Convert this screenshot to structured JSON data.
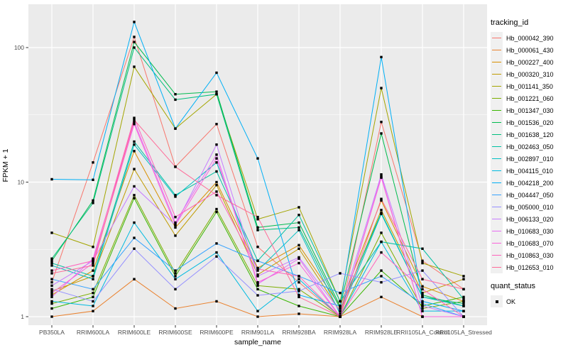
{
  "figure": {
    "background": "#FFFFFF",
    "panel_background": "#EBEBEB",
    "gridline_color": "#FFFFFF",
    "tick_color": "#333333",
    "tick_label_color": "#4D4D4D"
  },
  "chart_data": {
    "type": "line",
    "xlabel": "sample_name",
    "ylabel": "FPKM + 1",
    "y_scale": "log10",
    "y_ticks": [
      1,
      10,
      100
    ],
    "y_minor_ticks": [
      3.1623,
      31.623
    ],
    "grid": true,
    "legend_position": "right",
    "legend_title": "tracking_id",
    "point_marker": {
      "shape": "square",
      "color": "#000000",
      "size": 3.4
    },
    "categories": [
      "PB350LA",
      "RRIM600LA",
      "RRIM600LE",
      "RRIM600SE",
      "RRIM600PE",
      "RRIM901LA",
      "RRIM928BA",
      "RRIM928LA",
      "RRIM928LE",
      "RRII105LA_Control",
      "RRII105LA_Stressed"
    ],
    "series": [
      {
        "name": "Hb_000042_390",
        "color": "#F8766D",
        "values": [
          1.8,
          14,
          120,
          13,
          27,
          3.3,
          1.8,
          1.0,
          28,
          2.6,
          1.6
        ]
      },
      {
        "name": "Hb_000061_430",
        "color": "#EA8331",
        "values": [
          1.0,
          1.1,
          1.9,
          1.15,
          1.3,
          1.0,
          1.05,
          1.0,
          1.4,
          1.0,
          1.0
        ]
      },
      {
        "name": "Hb_000227_400",
        "color": "#D89000",
        "values": [
          1.45,
          2.2,
          17,
          4.6,
          10,
          2.3,
          3.4,
          1.2,
          7.3,
          1.68,
          1.3
        ]
      },
      {
        "name": "Hb_000320_310",
        "color": "#C09B00",
        "values": [
          1.55,
          2.0,
          12.5,
          4.0,
          9.5,
          2.05,
          3.2,
          1.1,
          6.2,
          1.5,
          1.9
        ]
      },
      {
        "name": "Hb_001141_350",
        "color": "#A3A500",
        "values": [
          4.2,
          3.3,
          72,
          25,
          45,
          5.3,
          6.5,
          1.3,
          50,
          2.5,
          2.0
        ]
      },
      {
        "name": "Hb_001221_060",
        "color": "#7CAE00",
        "values": [
          1.25,
          1.5,
          8.0,
          2.1,
          6.3,
          1.7,
          1.6,
          1.0,
          4.2,
          1.15,
          1.3
        ]
      },
      {
        "name": "Hb_001347_030",
        "color": "#39B600",
        "values": [
          1.15,
          1.4,
          7.6,
          2.0,
          6.0,
          1.6,
          1.2,
          1.0,
          2.2,
          1.2,
          1.4
        ]
      },
      {
        "name": "Hb_001536_020",
        "color": "#00BB4E",
        "values": [
          2.6,
          7.3,
          110,
          45,
          47,
          4.6,
          5.0,
          1.2,
          23,
          1.45,
          1.2
        ]
      },
      {
        "name": "Hb_001638_120",
        "color": "#00BF7D",
        "values": [
          2.7,
          7.0,
          100,
          41,
          45,
          4.4,
          4.6,
          1.15,
          5.9,
          1.4,
          1.25
        ]
      },
      {
        "name": "Hb_002463_050",
        "color": "#00C1A3",
        "values": [
          2.5,
          2.0,
          20,
          8.0,
          12,
          2.6,
          5.7,
          1.3,
          3.6,
          3.2,
          1.35
        ]
      },
      {
        "name": "Hb_002897_010",
        "color": "#00BFC4",
        "values": [
          2.4,
          1.9,
          19,
          7.8,
          14,
          2.2,
          4.4,
          1.05,
          5.8,
          1.4,
          1.2
        ]
      },
      {
        "name": "Hb_004115_010",
        "color": "#00BAE0",
        "values": [
          1.3,
          1.2,
          5.0,
          1.9,
          3.0,
          1.1,
          1.9,
          1.0,
          3.6,
          1.1,
          1.1
        ]
      },
      {
        "name": "Hb_004218_200",
        "color": "#00B0F6",
        "values": [
          10.5,
          10.4,
          155,
          25,
          65,
          15,
          1.45,
          1.2,
          85,
          1.3,
          1.1
        ]
      },
      {
        "name": "Hb_004447_050",
        "color": "#35A2FF",
        "values": [
          1.9,
          1.6,
          3.85,
          2.2,
          3.5,
          2.6,
          2.0,
          1.5,
          2.0,
          1.25,
          1.0
        ]
      },
      {
        "name": "Hb_005000_010",
        "color": "#9590FF",
        "values": [
          1.6,
          1.3,
          3.2,
          1.6,
          2.8,
          1.44,
          1.55,
          2.1,
          1.8,
          2.2,
          1.0
        ]
      },
      {
        "name": "Hb_006133_020",
        "color": "#C77CFF",
        "values": [
          1.7,
          2.6,
          9.3,
          4.8,
          19,
          2.0,
          2.76,
          1.1,
          11.4,
          1.2,
          1.0
        ]
      },
      {
        "name": "Hb_010683_030",
        "color": "#E76BF3",
        "values": [
          1.4,
          2.7,
          28,
          5.0,
          16,
          1.75,
          2.7,
          1.0,
          11,
          1.0,
          1.0
        ]
      },
      {
        "name": "Hb_010683_070",
        "color": "#FA62DB",
        "values": [
          1.5,
          2.5,
          27,
          4.8,
          15,
          1.8,
          2.5,
          1.0,
          10.8,
          1.0,
          1.0
        ]
      },
      {
        "name": "Hb_010863_030",
        "color": "#FF62BC",
        "values": [
          2.2,
          2.6,
          30,
          5.5,
          8.5,
          2.26,
          2.0,
          1.0,
          3.0,
          1.6,
          1.0
        ]
      },
      {
        "name": "Hb_012653_010",
        "color": "#FF6A98",
        "values": [
          2.1,
          2.4,
          29,
          13,
          8.0,
          5.5,
          1.4,
          1.0,
          7.5,
          1.9,
          1.6
        ]
      }
    ],
    "status_legend": {
      "title": "quant_status",
      "items": [
        {
          "label": "OK",
          "marker": "black-square"
        }
      ]
    }
  }
}
